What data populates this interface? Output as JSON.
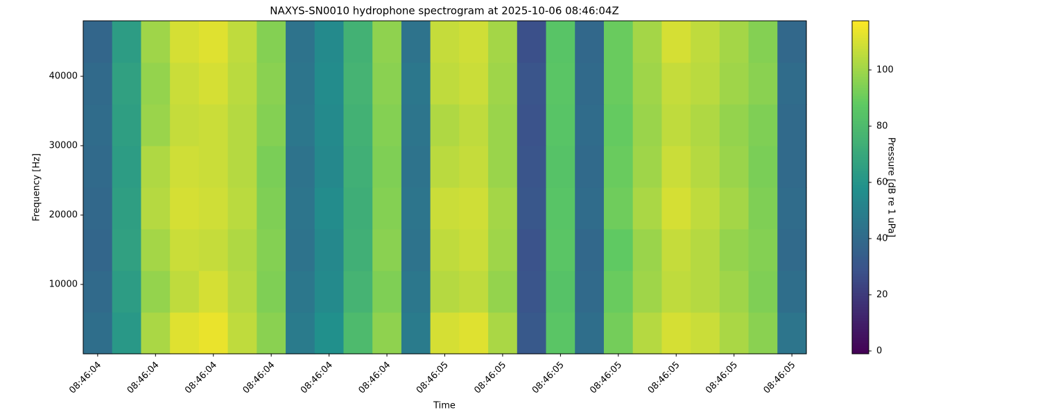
{
  "chart_data": {
    "type": "heatmap",
    "title": "NAXYS-SN0010 hydrophone spectrogram at 2025-10-06 08:46:04Z",
    "xlabel": "Time",
    "ylabel": "Frequency [Hz]",
    "categories": [
      "08:46:04",
      null,
      "08:46:04",
      null,
      "08:46:04",
      null,
      "08:46:04",
      null,
      "08:46:04",
      null,
      "08:46:04",
      null,
      "08:46:05",
      null,
      "08:46:05",
      null,
      "08:46:05",
      null,
      "08:46:05",
      null,
      "08:46:05",
      null,
      "08:46:05",
      null,
      "08:46:05"
    ],
    "ybins": [
      0,
      6000,
      12000,
      18000,
      24000,
      30000,
      36000,
      42000,
      48000
    ],
    "ylim": [
      0,
      48000
    ],
    "yticks": [
      10000,
      20000,
      30000,
      40000
    ],
    "values": [
      [
        42,
        62,
        102,
        112,
        114,
        106,
        96,
        48,
        58,
        80,
        97,
        48,
        110,
        112,
        102,
        32,
        86,
        42,
        92,
        104,
        110,
        108,
        102,
        96,
        45
      ],
      [
        40,
        64,
        98,
        106,
        110,
        104,
        94,
        46,
        55,
        76,
        94,
        46,
        104,
        106,
        98,
        30,
        84,
        40,
        90,
        100,
        106,
        104,
        100,
        94,
        42
      ],
      [
        38,
        66,
        101,
        108,
        107,
        103,
        95,
        44,
        54,
        74,
        96,
        44,
        106,
        108,
        100,
        29,
        86,
        39,
        88,
        99,
        107,
        104,
        98,
        95,
        40
      ],
      [
        39,
        65,
        104,
        110,
        109,
        105,
        94,
        45,
        56,
        73,
        95,
        45,
        108,
        109,
        101,
        31,
        85,
        41,
        91,
        102,
        110,
        106,
        101,
        94,
        41
      ],
      [
        40,
        64,
        103,
        109,
        108,
        104,
        93,
        44,
        54,
        74,
        94,
        44,
        105,
        107,
        99,
        30,
        84,
        40,
        90,
        100,
        108,
        104,
        99,
        93,
        40
      ],
      [
        41,
        65,
        99,
        107,
        108,
        104,
        95,
        46,
        55,
        75,
        95,
        45,
        103,
        106,
        99,
        29,
        85,
        41,
        89,
        99,
        106,
        103,
        98,
        94,
        40
      ],
      [
        40,
        66,
        98,
        108,
        110,
        105,
        96,
        45,
        56,
        76,
        96,
        46,
        106,
        108,
        100,
        30,
        86,
        40,
        90,
        100,
        107,
        105,
        100,
        96,
        41
      ],
      [
        38,
        64,
        100,
        110,
        112,
        106,
        95,
        44,
        55,
        75,
        97,
        44,
        107,
        109,
        101,
        28,
        85,
        39,
        90,
        101,
        110,
        106,
        101,
        95,
        39
      ]
    ],
    "colorbar": {
      "label": "Pressure [dB re 1 uPa]",
      "colormap": "viridis",
      "lim": [
        -1,
        117.5
      ],
      "ticks": [
        0,
        20,
        40,
        60,
        80,
        100
      ]
    }
  }
}
